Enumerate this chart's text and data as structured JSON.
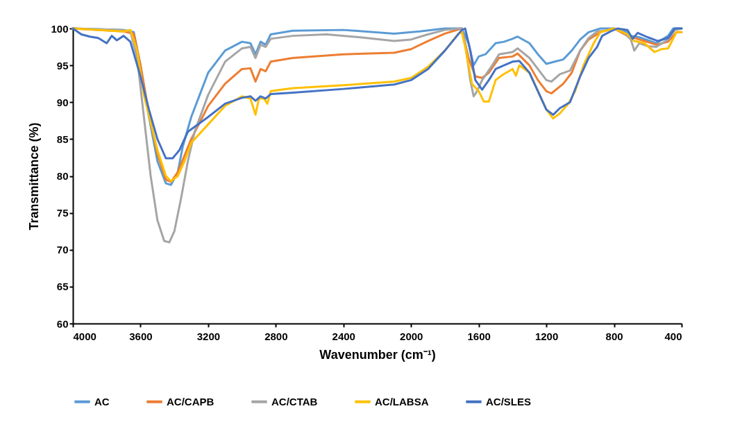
{
  "chart_data": {
    "type": "line",
    "xlabel": "Wavenumber (cm⁻¹)",
    "ylabel": "Transmittance (%)",
    "xlim": [
      4000,
      400
    ],
    "xticks": [
      4000,
      3600,
      3200,
      2800,
      2400,
      2000,
      1600,
      1200,
      800,
      400
    ],
    "ylim": [
      60,
      100
    ],
    "yticks": [
      60,
      65,
      70,
      75,
      80,
      85,
      90,
      95,
      100
    ],
    "legend": "bottom",
    "marker": "none",
    "line_style": "solid",
    "series": [
      {
        "name": "AC",
        "color": "#5b9bd5",
        "x": [
          4000,
          3700,
          3640,
          3600,
          3550,
          3500,
          3450,
          3420,
          3380,
          3350,
          3300,
          3250,
          3200,
          3100,
          3000,
          2950,
          2920,
          2890,
          2860,
          2830,
          2700,
          2400,
          2100,
          1950,
          1800,
          1700,
          1660,
          1630,
          1600,
          1560,
          1500,
          1450,
          1400,
          1370,
          1300,
          1250,
          1200,
          1150,
          1100,
          1050,
          1000,
          950,
          880,
          800,
          720,
          700,
          650,
          550,
          480,
          450,
          400
        ],
        "values": [
          100,
          99.8,
          99.5,
          95,
          88,
          82,
          79,
          78.8,
          80.5,
          84,
          88,
          91,
          94,
          97,
          98.2,
          98,
          96.5,
          98.2,
          97.8,
          99.2,
          99.7,
          99.8,
          99.3,
          99.6,
          100,
          100,
          98,
          95,
          96.2,
          96.5,
          98,
          98.2,
          98.6,
          98.9,
          98,
          96.5,
          95.2,
          95.5,
          95.8,
          97,
          98.5,
          99.5,
          100,
          100,
          99.5,
          99,
          98.8,
          98,
          99,
          100,
          100
        ]
      },
      {
        "name": "AC/CAPB",
        "color": "#ed7d31",
        "x": [
          4000,
          3700,
          3640,
          3600,
          3550,
          3500,
          3450,
          3420,
          3380,
          3300,
          3200,
          3100,
          3000,
          2950,
          2920,
          2890,
          2860,
          2830,
          2700,
          2400,
          2100,
          2000,
          1900,
          1800,
          1700,
          1660,
          1620,
          1580,
          1540,
          1480,
          1400,
          1370,
          1300,
          1250,
          1200,
          1170,
          1100,
          1050,
          1000,
          950,
          880,
          800,
          720,
          650,
          550,
          480,
          430,
          400
        ],
        "values": [
          100,
          99.6,
          99.3,
          95,
          88.5,
          83,
          79.5,
          79.2,
          80.5,
          85,
          89.5,
          92.5,
          94.5,
          94.6,
          92.8,
          94.5,
          94.2,
          95.5,
          96,
          96.5,
          96.7,
          97.2,
          98.3,
          99.3,
          100,
          96,
          93.5,
          93.3,
          94,
          96,
          96.2,
          96.6,
          95,
          93,
          91.5,
          91.2,
          92.5,
          94,
          97,
          98.5,
          99.5,
          100,
          99,
          98.5,
          97.8,
          98.2,
          99.5,
          99.5
        ]
      },
      {
        "name": "AC/CTAB",
        "color": "#a5a5a5",
        "x": [
          4000,
          3700,
          3660,
          3620,
          3580,
          3540,
          3500,
          3460,
          3430,
          3400,
          3360,
          3320,
          3280,
          3200,
          3100,
          3000,
          2950,
          2920,
          2890,
          2860,
          2830,
          2700,
          2500,
          2300,
          2100,
          2000,
          1900,
          1800,
          1700,
          1680,
          1650,
          1630,
          1610,
          1580,
          1520,
          1480,
          1400,
          1370,
          1300,
          1250,
          1200,
          1170,
          1120,
          1060,
          1000,
          950,
          900,
          850,
          800,
          750,
          700,
          680,
          650,
          600,
          550,
          480,
          440,
          400
        ],
        "values": [
          100,
          99.8,
          99.6,
          96,
          88,
          80,
          74,
          71.2,
          71,
          72.5,
          77,
          82,
          86,
          91,
          95.5,
          97.3,
          97.5,
          96,
          97.8,
          97.5,
          98.6,
          99,
          99.2,
          98.8,
          98.3,
          98.5,
          99.2,
          99.8,
          100,
          98,
          93,
          90.8,
          91.5,
          93,
          95,
          96.5,
          96.8,
          97.3,
          96,
          94.5,
          93,
          92.8,
          93.8,
          94.3,
          97,
          98.7,
          99.6,
          99.7,
          100,
          99.6,
          98.5,
          97,
          98,
          97.6,
          97.5,
          98.5,
          99.8,
          100
        ]
      },
      {
        "name": "AC/LABSA",
        "color": "#ffc000",
        "x": [
          4000,
          3700,
          3660,
          3620,
          3580,
          3500,
          3450,
          3420,
          3380,
          3340,
          3300,
          3200,
          3100,
          3000,
          2950,
          2920,
          2900,
          2870,
          2850,
          2830,
          2700,
          2400,
          2100,
          2000,
          1900,
          1800,
          1720,
          1700,
          1680,
          1640,
          1600,
          1570,
          1540,
          1500,
          1460,
          1400,
          1380,
          1360,
          1300,
          1250,
          1200,
          1160,
          1120,
          1070,
          1030,
          980,
          920,
          880,
          800,
          720,
          680,
          620,
          560,
          520,
          480,
          430,
          400
        ],
        "values": [
          100,
          99.6,
          99.8,
          97,
          91,
          83.5,
          80,
          79.3,
          80,
          82,
          84.5,
          87,
          89.5,
          90.8,
          90.5,
          88.3,
          90.5,
          90.5,
          89.8,
          91.5,
          91.9,
          92.3,
          92.8,
          93.3,
          94.8,
          97,
          99.3,
          99.5,
          97.5,
          92.5,
          91.5,
          90.1,
          90.1,
          93,
          93.7,
          94.5,
          93.6,
          95,
          94,
          91.5,
          89,
          87.8,
          88.5,
          89.8,
          91.5,
          95,
          98,
          99.5,
          100,
          99.2,
          98.3,
          98,
          96.8,
          97.2,
          97.3,
          99.5,
          99.5
        ]
      },
      {
        "name": "AC/SLES",
        "color": "#4472c4",
        "x": [
          4000,
          3950,
          3900,
          3850,
          3800,
          3770,
          3740,
          3700,
          3660,
          3600,
          3550,
          3500,
          3450,
          3410,
          3370,
          3320,
          3200,
          3100,
          3000,
          2950,
          2920,
          2890,
          2860,
          2830,
          2700,
          2400,
          2100,
          2000,
          1900,
          1800,
          1700,
          1680,
          1650,
          1620,
          1580,
          1540,
          1500,
          1460,
          1400,
          1360,
          1300,
          1250,
          1200,
          1160,
          1120,
          1060,
          1000,
          950,
          900,
          870,
          820,
          780,
          720,
          690,
          660,
          600,
          540,
          480,
          440,
          400
        ],
        "values": [
          100,
          99.2,
          98.9,
          98.7,
          98,
          99,
          98.4,
          99,
          98.2,
          93.5,
          89,
          85,
          82.4,
          82.4,
          83.5,
          86,
          88,
          89.8,
          90.6,
          90.8,
          90.2,
          90.8,
          90.5,
          91.1,
          91.3,
          91.8,
          92.4,
          93,
          94.5,
          97,
          99.8,
          100,
          97,
          93,
          91.7,
          93,
          94.5,
          94.9,
          95.5,
          95.6,
          94,
          91.5,
          89,
          88.3,
          89.2,
          90,
          93.5,
          96,
          97.5,
          99,
          99.6,
          100,
          99.8,
          98.6,
          99.4,
          98.8,
          98.3,
          98.7,
          100,
          100
        ]
      }
    ]
  }
}
